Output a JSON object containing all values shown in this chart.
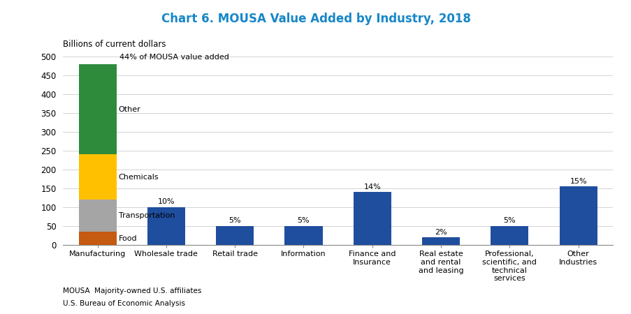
{
  "title": "Chart 6. MOUSA Value Added by Industry, 2018",
  "ylabel": "Billions of current dollars",
  "ylim": [
    0,
    500
  ],
  "yticks": [
    0,
    50,
    100,
    150,
    200,
    250,
    300,
    350,
    400,
    450,
    500
  ],
  "categories": [
    "Manufacturing",
    "Wholesale trade",
    "Retail trade",
    "Information",
    "Finance and\nInsurance",
    "Real estate\nand rental\nand leasing",
    "Professional,\nscientific, and\ntechnical\nservices",
    "Other\nIndustries"
  ],
  "single_bar_values": [
    null,
    100,
    50,
    50,
    140,
    20,
    50,
    155
  ],
  "single_bar_pct": [
    null,
    "10%",
    "5%",
    "5%",
    "14%",
    "2%",
    "5%",
    "15%"
  ],
  "single_bar_color": "#1f4e9e",
  "stacked_segments": [
    {
      "label": "Food",
      "value": 35,
      "color": "#c55a11"
    },
    {
      "label": "Transportation",
      "value": 85,
      "color": "#a5a5a5"
    },
    {
      "label": "Chemicals",
      "value": 120,
      "color": "#ffc000"
    },
    {
      "label": "Other",
      "value": 240,
      "color": "#2e8b3c"
    }
  ],
  "stacked_total_label": "44% of MOUSA value added",
  "footnote1": "MOUSA  Majority-owned U.S. affiliates",
  "footnote2": "U.S. Bureau of Economic Analysis",
  "title_color": "#1787c8",
  "background_color": "#ffffff",
  "grid_color": "#cccccc"
}
